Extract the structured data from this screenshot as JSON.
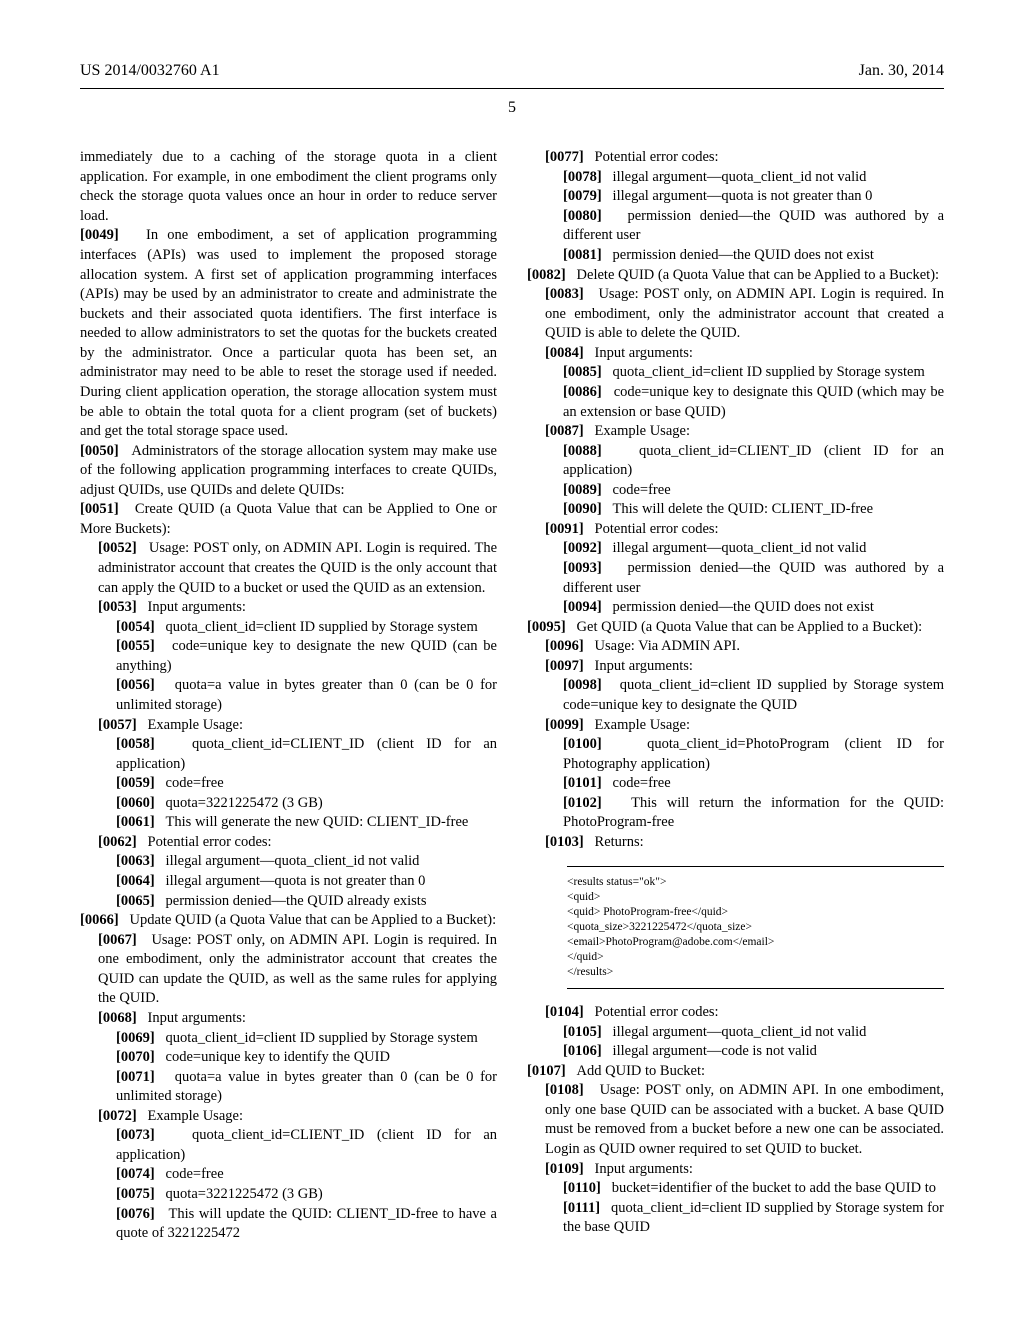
{
  "header": {
    "pub_number": "US 2014/0032760 A1",
    "pub_date": "Jan. 30, 2014",
    "page": "5"
  },
  "left": {
    "intro": "immediately due to a caching of the storage quota in a client application. For example, in one embodiment the client programs only check the storage quota values once an hour in order to reduce server load.",
    "p0049": "In one embodiment, a set of application programming interfaces (APIs) was used to implement the proposed storage allocation system. A first set of application programming interfaces (APIs) may be used by an administrator to create and administrate the buckets and their associated quota identifiers. The first interface is needed to allow administrators to set the quotas for the buckets created by the administrator. Once a particular quota has been set, an administrator may need to be able to reset the storage used if needed. During client application operation, the storage allocation system must be able to obtain the total quota for a client program (set of buckets) and get the total storage space used.",
    "p0050": "Administrators of the storage allocation system may make use of the following application programming interfaces to create QUIDs, adjust QUIDs, use QUIDs and delete QUIDs:",
    "p0051": "Create QUID (a Quota Value that can be Applied to One or More Buckets):",
    "p0052": "Usage: POST only, on ADMIN API. Login is required. The administrator account that creates the QUID is the only account that can apply the QUID to a bucket or used the QUID as an extension.",
    "p0053": "Input arguments:",
    "p0054": "quota_client_id=client ID supplied by Storage system",
    "p0055": "code=unique key to designate the new QUID (can be anything)",
    "p0056": "quota=a value in bytes greater than 0 (can be 0 for unlimited storage)",
    "p0057": "Example Usage:",
    "p0058": "quota_client_id=CLIENT_ID (client ID for an application)",
    "p0059": "code=free",
    "p0060": "quota=3221225472 (3 GB)",
    "p0061": "This will generate the new QUID: CLIENT_ID-free",
    "p0062": "Potential error codes:",
    "p0063": "illegal argument—quota_client_id not valid",
    "p0064": "illegal argument—quota is not greater than 0",
    "p0065": "permission denied—the QUID already exists",
    "p0066": "Update QUID (a Quota Value that can be Applied to a Bucket):",
    "p0067": "Usage: POST only, on ADMIN API. Login is required. In one embodiment, only the administrator account that creates the QUID can update the QUID, as well as the same rules for applying the QUID.",
    "p0068": "Input arguments:",
    "p0069": "quota_client_id=client ID supplied by Storage system",
    "p0070": "code=unique key to identify the QUID",
    "p0071": "quota=a value in bytes greater than 0 (can be 0 for unlimited storage)",
    "p0072": "Example Usage:",
    "p0073": "quota_client_id=CLIENT_ID (client ID for an application)",
    "p0074": "code=free",
    "p0075": "quota=3221225472 (3 GB)",
    "p0076": "This will update the QUID: CLIENT_ID-free to have a quote of 3221225472"
  },
  "right": {
    "p0077": "Potential error codes:",
    "p0078": "illegal argument—quota_client_id not valid",
    "p0079": "illegal argument—quota is not greater than 0",
    "p0080": "permission denied—the QUID was authored by a different user",
    "p0081": "permission denied—the QUID does not exist",
    "p0082": "Delete QUID (a Quota Value that can be Applied to a Bucket):",
    "p0083": "Usage: POST only, on ADMIN API. Login is required. In one embodiment, only the administrator account that created a QUID is able to delete the QUID.",
    "p0084": "Input arguments:",
    "p0085": "quota_client_id=client ID supplied by Storage system",
    "p0086": "code=unique key to designate this QUID (which may be an extension or base QUID)",
    "p0087": "Example Usage:",
    "p0088": "quota_client_id=CLIENT_ID (client ID for an application)",
    "p0089": "code=free",
    "p0090": "This will delete the QUID: CLIENT_ID-free",
    "p0091": "Potential error codes:",
    "p0092": "illegal argument—quota_client_id not valid",
    "p0093": "permission denied—the QUID was authored by a different user",
    "p0094": "permission denied—the QUID does not exist",
    "p0095": "Get QUID (a Quota Value that can be Applied to a Bucket):",
    "p0096": "Usage: Via ADMIN API.",
    "p0097": "Input arguments:",
    "p0098": "quota_client_id=client ID supplied by Storage system code=unique key to designate the QUID",
    "p0099": "Example Usage:",
    "p0100": "quota_client_id=PhotoProgram (client ID for Photography application)",
    "p0101": "code=free",
    "p0102": "This will return the information for the QUID: PhotoProgram-free",
    "p0103": "Returns:",
    "code": [
      "<results status=\"ok\">",
      "<quid>",
      "<quid> PhotoProgram-free</quid>",
      "<quota_size>3221225472</quota_size>",
      "<email>PhotoProgram@adobe.com</email>",
      "</quid>",
      "</results>"
    ],
    "p0104": "Potential error codes:",
    "p0105": "illegal argument—quota_client_id not valid",
    "p0106": "illegal argument—code is not valid",
    "p0107": "Add QUID to Bucket:",
    "p0108": "Usage: POST only, on ADMIN API. In one embodiment, only one base QUID can be associated with a bucket. A base QUID must be removed from a bucket before a new one can be associated. Login as QUID owner required to set QUID to bucket.",
    "p0109": "Input arguments:",
    "p0110": "bucket=identifier of the bucket to add the base QUID to",
    "p0111": "quota_client_id=client ID supplied by Storage system for the base QUID"
  }
}
